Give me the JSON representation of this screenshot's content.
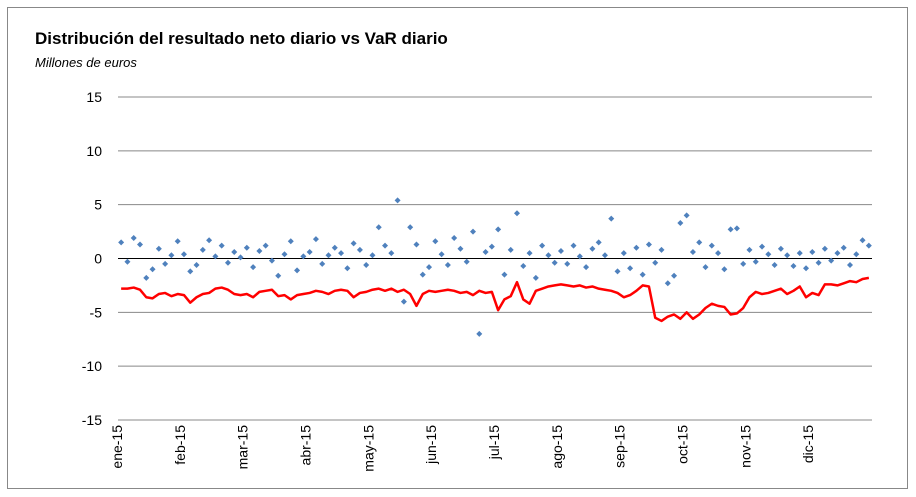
{
  "chart_data": {
    "type": "line",
    "title": "Distribución del resultado neto diario vs VaR diario",
    "subtitle": "Millones de euros",
    "categories": [
      "ene-15",
      null,
      null,
      null,
      null,
      null,
      null,
      null,
      null,
      null,
      "feb-15",
      null,
      null,
      null,
      null,
      null,
      null,
      null,
      null,
      null,
      "mar-15",
      null,
      null,
      null,
      null,
      null,
      null,
      null,
      null,
      null,
      "abr-15",
      null,
      null,
      null,
      null,
      null,
      null,
      null,
      null,
      null,
      "may-15",
      null,
      null,
      null,
      null,
      null,
      null,
      null,
      null,
      null,
      "jun-15",
      null,
      null,
      null,
      null,
      null,
      null,
      null,
      null,
      null,
      "jul-15",
      null,
      null,
      null,
      null,
      null,
      null,
      null,
      null,
      null,
      "ago-15",
      null,
      null,
      null,
      null,
      null,
      null,
      null,
      null,
      null,
      "sep-15",
      null,
      null,
      null,
      null,
      null,
      null,
      null,
      null,
      null,
      "oct-15",
      null,
      null,
      null,
      null,
      null,
      null,
      null,
      null,
      null,
      "nov-15",
      null,
      null,
      null,
      null,
      null,
      null,
      null,
      null,
      null,
      "dic-15",
      null,
      null,
      null,
      null,
      null,
      null,
      null,
      null,
      null
    ],
    "series": [
      {
        "type": "scatter",
        "color": "#4f81bd",
        "values": [
          1.5,
          -0.3,
          1.9,
          1.3,
          -1.8,
          -1.0,
          0.9,
          -0.5,
          0.3,
          1.6,
          0.4,
          -1.2,
          -0.6,
          0.8,
          1.7,
          0.2,
          1.2,
          -0.4,
          0.6,
          0.1,
          1.0,
          -0.8,
          0.7,
          1.2,
          -0.2,
          -1.6,
          0.4,
          1.6,
          -1.1,
          0.2,
          0.6,
          1.8,
          -0.5,
          0.3,
          1.0,
          0.5,
          -0.9,
          1.4,
          0.8,
          -0.6,
          0.3,
          2.9,
          1.2,
          0.5,
          5.4,
          -4.0,
          2.9,
          1.3,
          -1.5,
          -0.8,
          1.6,
          0.4,
          -0.6,
          1.9,
          0.9,
          -0.3,
          2.5,
          -7.0,
          0.6,
          1.1,
          2.7,
          -1.5,
          0.8,
          4.2,
          -0.7,
          0.5,
          -1.8,
          1.2,
          0.3,
          -0.4,
          0.7,
          -0.5,
          1.2,
          0.2,
          -0.8,
          0.9,
          1.5,
          0.3,
          3.7,
          -1.2,
          0.5,
          -0.9,
          1.0,
          -1.5,
          1.3,
          -0.4,
          0.8,
          -2.3,
          -1.6,
          3.3,
          4.0,
          0.6,
          1.5,
          -0.8,
          1.2,
          0.5,
          -1.0,
          2.7,
          2.8,
          -0.5,
          0.8,
          -0.3,
          1.1,
          0.4,
          -0.6,
          0.9,
          0.3,
          -0.7,
          0.5,
          -0.9,
          0.6,
          -0.4,
          0.9,
          -0.2,
          0.5,
          1.0,
          -0.6,
          0.4,
          1.7,
          1.2
        ]
      },
      {
        "type": "line",
        "color": "#ff0000",
        "values": [
          -2.8,
          -2.8,
          -2.7,
          -2.9,
          -3.6,
          -3.7,
          -3.3,
          -3.2,
          -3.5,
          -3.3,
          -3.4,
          -4.1,
          -3.6,
          -3.3,
          -3.2,
          -2.8,
          -2.7,
          -2.9,
          -3.3,
          -3.4,
          -3.3,
          -3.6,
          -3.1,
          -3.0,
          -2.9,
          -3.5,
          -3.4,
          -3.8,
          -3.4,
          -3.3,
          -3.2,
          -3.0,
          -3.1,
          -3.3,
          -3.0,
          -2.9,
          -3.0,
          -3.6,
          -3.2,
          -3.1,
          -2.9,
          -2.8,
          -3.0,
          -2.8,
          -3.1,
          -2.9,
          -3.3,
          -4.4,
          -3.3,
          -3.0,
          -3.1,
          -3.0,
          -2.9,
          -3.0,
          -3.2,
          -3.1,
          -3.4,
          -3.0,
          -3.2,
          -3.1,
          -4.8,
          -3.8,
          -3.5,
          -2.2,
          -3.8,
          -4.2,
          -3.0,
          -2.8,
          -2.6,
          -2.5,
          -2.4,
          -2.5,
          -2.6,
          -2.5,
          -2.7,
          -2.6,
          -2.8,
          -2.9,
          -3.0,
          -3.2,
          -3.6,
          -3.4,
          -3.0,
          -2.5,
          -2.6,
          -5.5,
          -5.8,
          -5.4,
          -5.2,
          -5.6,
          -5.0,
          -5.6,
          -5.2,
          -4.6,
          -4.2,
          -4.4,
          -4.5,
          -5.2,
          -5.1,
          -4.6,
          -3.6,
          -3.1,
          -3.3,
          -3.2,
          -3.0,
          -2.8,
          -3.3,
          -3.0,
          -2.6,
          -3.6,
          -3.2,
          -3.4,
          -2.4,
          -2.4,
          -2.5,
          -2.3,
          -2.1,
          -2.2,
          -1.9,
          -1.8
        ]
      }
    ],
    "ylim": [
      -15,
      15
    ],
    "yticks": [
      -15,
      -10,
      -5,
      0,
      5,
      10,
      15
    ],
    "grid": true
  }
}
